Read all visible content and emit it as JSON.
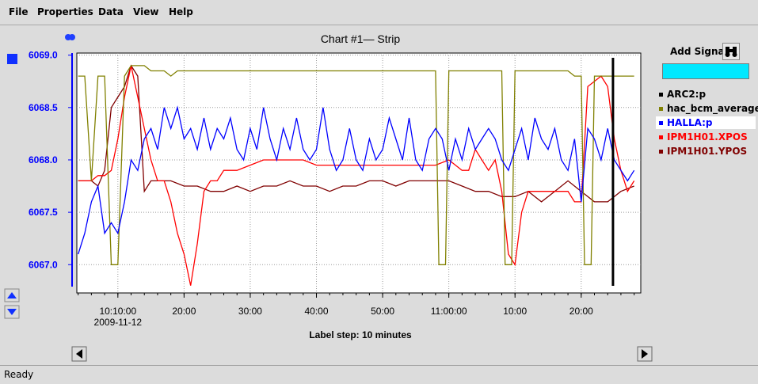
{
  "menu": [
    "File",
    "Properties",
    "Data",
    "View",
    "Help"
  ],
  "status": "Ready",
  "side_panel": {
    "add_signal_label": "Add Signal",
    "signal_input_value": "",
    "legend": [
      {
        "name": "ARC2:p",
        "color": "#000000",
        "label_color": "#000000",
        "selected": false
      },
      {
        "name": "hac_bcm_average",
        "color": "#808000",
        "label_color": "#000000",
        "selected": false
      },
      {
        "name": "HALLA:p",
        "color": "#0000ff",
        "label_color": "#0000ff",
        "selected": true
      },
      {
        "name": "IPM1H01.XPOS",
        "color": "#ff0000",
        "label_color": "#ff0000",
        "selected": false
      },
      {
        "name": "IPM1H01.YPOS",
        "color": "#800000",
        "label_color": "#800000",
        "selected": false
      }
    ]
  },
  "chart_data": {
    "type": "line",
    "title": "Chart #1— Strip",
    "xlabel": "Label step: 10 minutes",
    "x_ticks": [
      {
        "minute": 10,
        "label": "10:10:00",
        "sublabel": "2009-11-12"
      },
      {
        "minute": 20,
        "label": "20:00"
      },
      {
        "minute": 30,
        "label": "30:00"
      },
      {
        "minute": 40,
        "label": "40:00"
      },
      {
        "minute": 50,
        "label": "50:00"
      },
      {
        "minute": 60,
        "label": "11:00:00"
      },
      {
        "minute": 70,
        "label": "10:00"
      },
      {
        "minute": 80,
        "label": "20:00"
      }
    ],
    "xlim": [
      3.8,
      89
    ],
    "y_ticks": [
      "6067.0",
      "6067.5",
      "6068.0",
      "6068.5",
      "6069.0"
    ],
    "ylim": [
      6066.73,
      6069.02
    ],
    "grid": true,
    "cursor_minute": 84.8,
    "axis_color": "#0000ff",
    "series": [
      {
        "name": "HALLA:p",
        "color": "#0000ff",
        "points": [
          [
            4,
            6067.1
          ],
          [
            5,
            6067.3
          ],
          [
            6,
            6067.6
          ],
          [
            7,
            6067.75
          ],
          [
            8,
            6067.3
          ],
          [
            9,
            6067.4
          ],
          [
            10,
            6067.3
          ],
          [
            11,
            6067.6
          ],
          [
            12,
            6068.0
          ],
          [
            13,
            6067.9
          ],
          [
            14,
            6068.2
          ],
          [
            15,
            6068.3
          ],
          [
            16,
            6068.1
          ],
          [
            17,
            6068.5
          ],
          [
            18,
            6068.3
          ],
          [
            19,
            6068.5
          ],
          [
            20,
            6068.2
          ],
          [
            21,
            6068.3
          ],
          [
            22,
            6068.1
          ],
          [
            23,
            6068.4
          ],
          [
            24,
            6068.1
          ],
          [
            25,
            6068.3
          ],
          [
            26,
            6068.2
          ],
          [
            27,
            6068.4
          ],
          [
            28,
            6068.1
          ],
          [
            29,
            6068.0
          ],
          [
            30,
            6068.3
          ],
          [
            31,
            6068.1
          ],
          [
            32,
            6068.5
          ],
          [
            33,
            6068.2
          ],
          [
            34,
            6068.0
          ],
          [
            35,
            6068.3
          ],
          [
            36,
            6068.1
          ],
          [
            37,
            6068.4
          ],
          [
            38,
            6068.1
          ],
          [
            39,
            6068.0
          ],
          [
            40,
            6068.1
          ],
          [
            41,
            6068.5
          ],
          [
            42,
            6068.1
          ],
          [
            43,
            6067.9
          ],
          [
            44,
            6068.0
          ],
          [
            45,
            6068.3
          ],
          [
            46,
            6068.0
          ],
          [
            47,
            6067.9
          ],
          [
            48,
            6068.2
          ],
          [
            49,
            6068.0
          ],
          [
            50,
            6068.1
          ],
          [
            51,
            6068.4
          ],
          [
            52,
            6068.2
          ],
          [
            53,
            6068.0
          ],
          [
            54,
            6068.4
          ],
          [
            55,
            6068.0
          ],
          [
            56,
            6067.9
          ],
          [
            57,
            6068.2
          ],
          [
            58,
            6068.3
          ],
          [
            59,
            6068.2
          ],
          [
            60,
            6067.9
          ],
          [
            61,
            6068.2
          ],
          [
            62,
            6068.0
          ],
          [
            63,
            6068.3
          ],
          [
            64,
            6068.1
          ],
          [
            65,
            6068.2
          ],
          [
            66,
            6068.3
          ],
          [
            67,
            6068.2
          ],
          [
            68,
            6068.0
          ],
          [
            69,
            6067.9
          ],
          [
            70,
            6068.1
          ],
          [
            71,
            6068.3
          ],
          [
            72,
            6068.0
          ],
          [
            73,
            6068.4
          ],
          [
            74,
            6068.2
          ],
          [
            75,
            6068.1
          ],
          [
            76,
            6068.3
          ],
          [
            77,
            6068.0
          ],
          [
            78,
            6067.9
          ],
          [
            79,
            6068.2
          ],
          [
            80,
            6067.6
          ],
          [
            81,
            6068.3
          ],
          [
            82,
            6068.2
          ],
          [
            83,
            6068.0
          ],
          [
            84,
            6068.3
          ],
          [
            85,
            6068.0
          ],
          [
            86,
            6067.9
          ],
          [
            87,
            6067.8
          ],
          [
            88,
            6067.9
          ]
        ]
      },
      {
        "name": "hac_bcm_average",
        "color": "#808000",
        "points": [
          [
            4,
            6068.8
          ],
          [
            5,
            6068.8
          ],
          [
            6,
            6067.8
          ],
          [
            7,
            6068.8
          ],
          [
            8,
            6068.8
          ],
          [
            9,
            6067.0
          ],
          [
            10,
            6067.0
          ],
          [
            11,
            6068.8
          ],
          [
            12,
            6068.9
          ],
          [
            13,
            6068.9
          ],
          [
            14,
            6068.9
          ],
          [
            15,
            6068.85
          ],
          [
            16,
            6068.85
          ],
          [
            17,
            6068.85
          ],
          [
            18,
            6068.8
          ],
          [
            19,
            6068.85
          ],
          [
            20,
            6068.85
          ],
          [
            22,
            6068.85
          ],
          [
            24,
            6068.85
          ],
          [
            26,
            6068.85
          ],
          [
            28,
            6068.85
          ],
          [
            30,
            6068.85
          ],
          [
            32,
            6068.85
          ],
          [
            34,
            6068.85
          ],
          [
            36,
            6068.85
          ],
          [
            38,
            6068.85
          ],
          [
            40,
            6068.85
          ],
          [
            42,
            6068.85
          ],
          [
            44,
            6068.85
          ],
          [
            46,
            6068.85
          ],
          [
            48,
            6068.85
          ],
          [
            50,
            6068.85
          ],
          [
            52,
            6068.85
          ],
          [
            54,
            6068.85
          ],
          [
            56,
            6068.85
          ],
          [
            58,
            6068.85
          ],
          [
            58.5,
            6067.0
          ],
          [
            59.5,
            6067.0
          ],
          [
            60,
            6068.85
          ],
          [
            62,
            6068.85
          ],
          [
            64,
            6068.85
          ],
          [
            66,
            6068.85
          ],
          [
            68,
            6068.85
          ],
          [
            68.5,
            6067.0
          ],
          [
            69.5,
            6067.0
          ],
          [
            70,
            6068.85
          ],
          [
            72,
            6068.85
          ],
          [
            74,
            6068.85
          ],
          [
            76,
            6068.85
          ],
          [
            78,
            6068.85
          ],
          [
            79,
            6068.8
          ],
          [
            80,
            6068.8
          ],
          [
            80.5,
            6067.0
          ],
          [
            81.5,
            6067.0
          ],
          [
            82,
            6068.8
          ],
          [
            84,
            6068.8
          ],
          [
            86,
            6068.8
          ],
          [
            88,
            6068.8
          ]
        ]
      },
      {
        "name": "IPM1H01.XPOS",
        "color": "#ff0000",
        "points": [
          [
            4,
            6067.8
          ],
          [
            6,
            6067.8
          ],
          [
            7,
            6067.85
          ],
          [
            8,
            6067.85
          ],
          [
            9,
            6067.9
          ],
          [
            10,
            6068.2
          ],
          [
            11,
            6068.6
          ],
          [
            12,
            6068.9
          ],
          [
            13,
            6068.6
          ],
          [
            14,
            6068.3
          ],
          [
            15,
            6068.0
          ],
          [
            16,
            6067.8
          ],
          [
            17,
            6067.8
          ],
          [
            18,
            6067.6
          ],
          [
            19,
            6067.3
          ],
          [
            20,
            6067.1
          ],
          [
            21,
            6066.8
          ],
          [
            22,
            6067.2
          ],
          [
            23,
            6067.7
          ],
          [
            24,
            6067.8
          ],
          [
            25,
            6067.8
          ],
          [
            26,
            6067.9
          ],
          [
            28,
            6067.9
          ],
          [
            30,
            6067.95
          ],
          [
            32,
            6068.0
          ],
          [
            34,
            6068.0
          ],
          [
            36,
            6068.0
          ],
          [
            38,
            6068.0
          ],
          [
            40,
            6067.95
          ],
          [
            42,
            6067.95
          ],
          [
            44,
            6067.95
          ],
          [
            46,
            6067.95
          ],
          [
            48,
            6067.95
          ],
          [
            50,
            6067.95
          ],
          [
            52,
            6067.95
          ],
          [
            54,
            6067.95
          ],
          [
            56,
            6067.95
          ],
          [
            58,
            6067.95
          ],
          [
            60,
            6068.0
          ],
          [
            62,
            6067.9
          ],
          [
            63,
            6067.9
          ],
          [
            64,
            6068.1
          ],
          [
            65,
            6068.0
          ],
          [
            66,
            6067.9
          ],
          [
            67,
            6068.0
          ],
          [
            68,
            6067.7
          ],
          [
            69,
            6067.1
          ],
          [
            70,
            6067.0
          ],
          [
            71,
            6067.5
          ],
          [
            72,
            6067.7
          ],
          [
            74,
            6067.7
          ],
          [
            76,
            6067.7
          ],
          [
            78,
            6067.7
          ],
          [
            79,
            6067.6
          ],
          [
            80,
            6067.6
          ],
          [
            81,
            6068.7
          ],
          [
            82,
            6068.75
          ],
          [
            83,
            6068.8
          ],
          [
            84,
            6068.7
          ],
          [
            85,
            6068.2
          ],
          [
            86,
            6067.9
          ],
          [
            87,
            6067.7
          ],
          [
            88,
            6067.8
          ]
        ]
      },
      {
        "name": "IPM1H01.YPOS",
        "color": "#800000",
        "points": [
          [
            4,
            6067.8
          ],
          [
            6,
            6067.8
          ],
          [
            7,
            6067.75
          ],
          [
            8,
            6067.9
          ],
          [
            9,
            6068.5
          ],
          [
            10,
            6068.6
          ],
          [
            11,
            6068.7
          ],
          [
            12,
            6068.9
          ],
          [
            13,
            6068.8
          ],
          [
            14,
            6067.7
          ],
          [
            15,
            6067.8
          ],
          [
            16,
            6067.8
          ],
          [
            18,
            6067.8
          ],
          [
            20,
            6067.75
          ],
          [
            22,
            6067.75
          ],
          [
            24,
            6067.7
          ],
          [
            26,
            6067.7
          ],
          [
            28,
            6067.75
          ],
          [
            30,
            6067.7
          ],
          [
            32,
            6067.75
          ],
          [
            34,
            6067.75
          ],
          [
            36,
            6067.8
          ],
          [
            38,
            6067.75
          ],
          [
            40,
            6067.75
          ],
          [
            42,
            6067.7
          ],
          [
            44,
            6067.75
          ],
          [
            46,
            6067.75
          ],
          [
            48,
            6067.8
          ],
          [
            50,
            6067.8
          ],
          [
            52,
            6067.75
          ],
          [
            54,
            6067.8
          ],
          [
            56,
            6067.8
          ],
          [
            58,
            6067.8
          ],
          [
            60,
            6067.8
          ],
          [
            62,
            6067.75
          ],
          [
            64,
            6067.7
          ],
          [
            66,
            6067.7
          ],
          [
            68,
            6067.65
          ],
          [
            70,
            6067.65
          ],
          [
            72,
            6067.7
          ],
          [
            74,
            6067.6
          ],
          [
            76,
            6067.7
          ],
          [
            78,
            6067.8
          ],
          [
            80,
            6067.7
          ],
          [
            82,
            6067.6
          ],
          [
            84,
            6067.6
          ],
          [
            86,
            6067.7
          ],
          [
            88,
            6067.75
          ]
        ]
      }
    ]
  }
}
